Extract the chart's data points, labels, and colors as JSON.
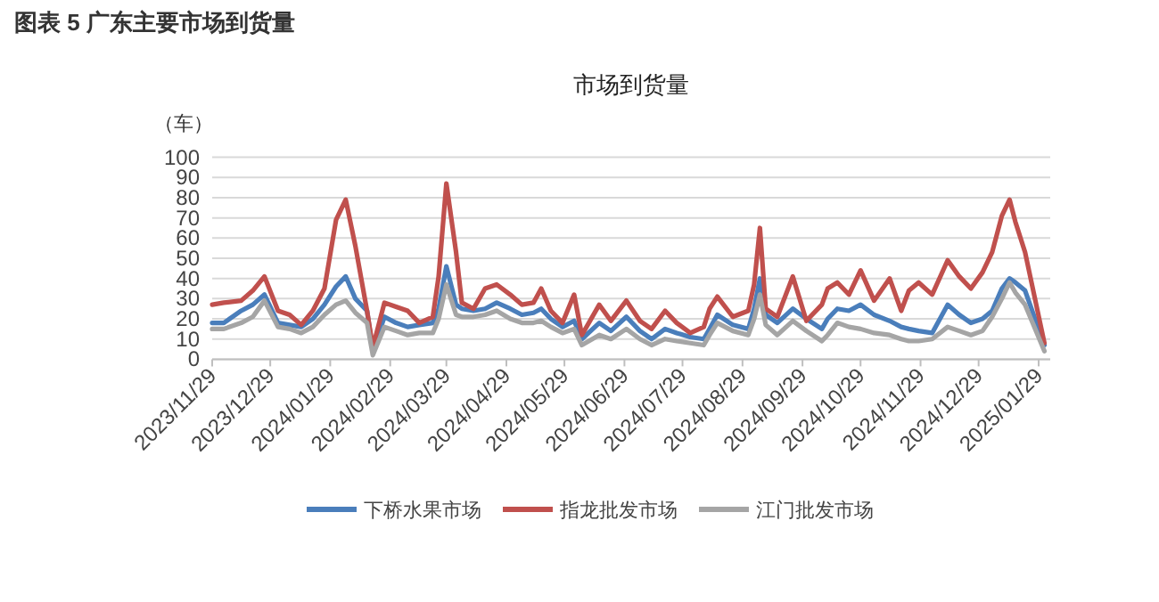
{
  "chart_data": {
    "type": "line",
    "title": "图表 5 广东主要市场到货量",
    "subtitle": "市场到货量",
    "ylabel": "（车）",
    "x": [
      "2023-11-29",
      "2023-12-05",
      "2023-12-14",
      "2023-12-20",
      "2023-12-26",
      "2024-01-02",
      "2024-01-08",
      "2024-01-14",
      "2024-01-20",
      "2024-01-26",
      "2024-02-01",
      "2024-02-06",
      "2024-02-11",
      "2024-02-17",
      "2024-02-20",
      "2024-02-26",
      "2024-03-03",
      "2024-03-09",
      "2024-03-15",
      "2024-03-22",
      "2024-03-25",
      "2024-03-29",
      "2024-04-03",
      "2024-04-06",
      "2024-04-12",
      "2024-04-18",
      "2024-04-24",
      "2024-05-01",
      "2024-05-07",
      "2024-05-13",
      "2024-05-17",
      "2024-05-22",
      "2024-05-28",
      "2024-06-03",
      "2024-06-07",
      "2024-06-16",
      "2024-06-22",
      "2024-06-30",
      "2024-07-07",
      "2024-07-13",
      "2024-07-20",
      "2024-07-26",
      "2024-08-02",
      "2024-08-09",
      "2024-08-12",
      "2024-08-16",
      "2024-08-24",
      "2024-09-01",
      "2024-09-04",
      "2024-09-07",
      "2024-09-10",
      "2024-09-16",
      "2024-09-24",
      "2024-10-01",
      "2024-10-09",
      "2024-10-12",
      "2024-10-17",
      "2024-10-23",
      "2024-10-29",
      "2024-11-05",
      "2024-11-13",
      "2024-11-19",
      "2024-11-23",
      "2024-11-28",
      "2024-12-05",
      "2024-12-13",
      "2024-12-19",
      "2024-12-25",
      "2024-12-31",
      "2025-01-05",
      "2025-01-10",
      "2025-01-14",
      "2025-01-17",
      "2025-01-22",
      "2025-02-01"
    ],
    "series": [
      {
        "name": "下桥水果市场",
        "color": "#4a7ebb",
        "values": [
          18,
          18,
          24,
          27,
          32,
          18,
          17,
          16,
          20,
          27,
          36,
          41,
          30,
          24,
          4,
          21,
          18,
          16,
          17,
          18,
          25,
          46,
          27,
          25,
          24,
          25,
          28,
          25,
          22,
          23,
          25,
          20,
          16,
          19,
          10,
          18,
          14,
          21,
          14,
          10,
          15,
          13,
          11,
          10,
          15,
          22,
          17,
          15,
          25,
          40,
          22,
          18,
          25,
          20,
          15,
          20,
          25,
          24,
          27,
          22,
          19,
          16,
          15,
          14,
          13,
          27,
          22,
          18,
          20,
          24,
          35,
          40,
          38,
          34,
          7
        ]
      },
      {
        "name": "指龙批发市场",
        "color": "#c0504d",
        "values": [
          27,
          28,
          29,
          34,
          41,
          24,
          22,
          17,
          24,
          35,
          69,
          79,
          56,
          24,
          6,
          28,
          26,
          24,
          18,
          21,
          41,
          87,
          53,
          28,
          25,
          35,
          37,
          32,
          27,
          28,
          35,
          24,
          18,
          32,
          12,
          27,
          19,
          29,
          19,
          15,
          24,
          18,
          13,
          16,
          25,
          31,
          21,
          24,
          37,
          65,
          25,
          21,
          41,
          19,
          27,
          35,
          38,
          32,
          44,
          29,
          40,
          24,
          34,
          38,
          32,
          49,
          41,
          35,
          43,
          53,
          71,
          79,
          68,
          53,
          8
        ]
      },
      {
        "name": "江门批发市场",
        "color": "#a5a5a5",
        "values": [
          15,
          15,
          18,
          21,
          29,
          16,
          15,
          13,
          16,
          22,
          27,
          29,
          23,
          18,
          2,
          16,
          14,
          12,
          13,
          13,
          20,
          37,
          22,
          21,
          21,
          22,
          24,
          20,
          18,
          18,
          19,
          16,
          13,
          15,
          7,
          12,
          10,
          15,
          10,
          7,
          10,
          9,
          8,
          7,
          12,
          18,
          14,
          12,
          20,
          32,
          17,
          12,
          19,
          14,
          9,
          12,
          18,
          16,
          15,
          13,
          12,
          10,
          9,
          9,
          10,
          16,
          14,
          12,
          14,
          21,
          30,
          38,
          33,
          27,
          4
        ]
      }
    ],
    "xlim": [
      "2023-11-29",
      "2025-02-04"
    ],
    "xticks": [
      {
        "value": "2023-11-29",
        "label": "2023/11/29"
      },
      {
        "value": "2023-12-29",
        "label": "2023/12/29"
      },
      {
        "value": "2024-01-29",
        "label": "2024/01/29"
      },
      {
        "value": "2024-02-29",
        "label": "2024/02/29"
      },
      {
        "value": "2024-03-29",
        "label": "2024/03/29"
      },
      {
        "value": "2024-04-29",
        "label": "2024/04/29"
      },
      {
        "value": "2024-05-29",
        "label": "2024/05/29"
      },
      {
        "value": "2024-06-29",
        "label": "2024/06/29"
      },
      {
        "value": "2024-07-29",
        "label": "2024/07/29"
      },
      {
        "value": "2024-08-29",
        "label": "2024/08/29"
      },
      {
        "value": "2024-09-29",
        "label": "2024/09/29"
      },
      {
        "value": "2024-10-29",
        "label": "2024/10/29"
      },
      {
        "value": "2024-11-29",
        "label": "2024/11/29"
      },
      {
        "value": "2024-12-29",
        "label": "2024/12/29"
      },
      {
        "value": "2025-01-29",
        "label": "2025/01/29"
      }
    ],
    "ylim": [
      0,
      100
    ],
    "yticks": [
      0,
      10,
      20,
      30,
      40,
      50,
      60,
      70,
      80,
      90,
      100
    ],
    "grid": "y",
    "legend": "bottom",
    "marker": "none",
    "line_style": "solid"
  }
}
